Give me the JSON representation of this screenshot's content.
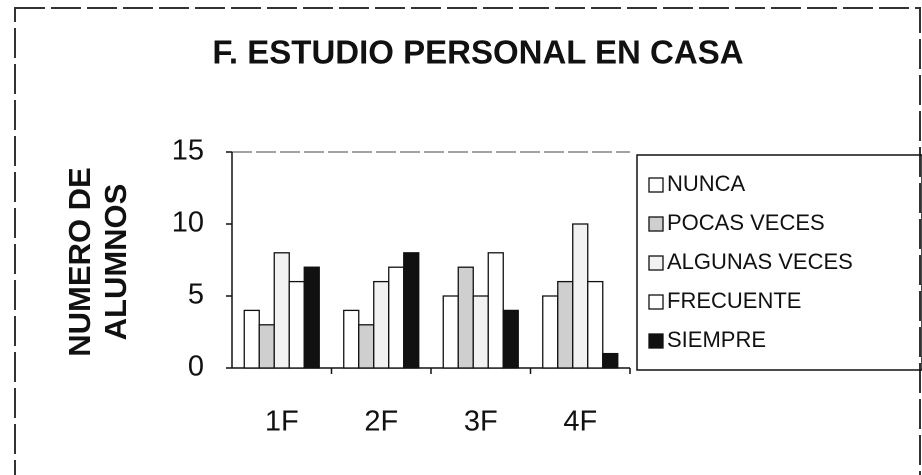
{
  "chart_data": {
    "type": "bar",
    "title": "F. ESTUDIO PERSONAL EN CASA",
    "ylabel": [
      "NUMERO DE",
      "ALUMNOS"
    ],
    "categories": [
      "1F",
      "2F",
      "3F",
      "4F"
    ],
    "series": [
      {
        "name": "NUNCA",
        "color": "#ffffff",
        "values": [
          4,
          4,
          5,
          5
        ]
      },
      {
        "name": "POCAS VECES",
        "color": "#cfcfcf",
        "values": [
          3,
          3,
          7,
          6
        ]
      },
      {
        "name": "ALGUNAS VECES",
        "color": "#f2f2f2",
        "values": [
          8,
          6,
          5,
          10
        ]
      },
      {
        "name": "FRECUENTE",
        "color": "#ffffff",
        "values": [
          6,
          7,
          8,
          6
        ]
      },
      {
        "name": "SIEMPRE",
        "color": "#111111",
        "values": [
          7,
          8,
          4,
          1
        ]
      }
    ],
    "ylim": [
      0,
      15
    ],
    "yticks": [
      0,
      5,
      10,
      15
    ],
    "legend": "right"
  }
}
